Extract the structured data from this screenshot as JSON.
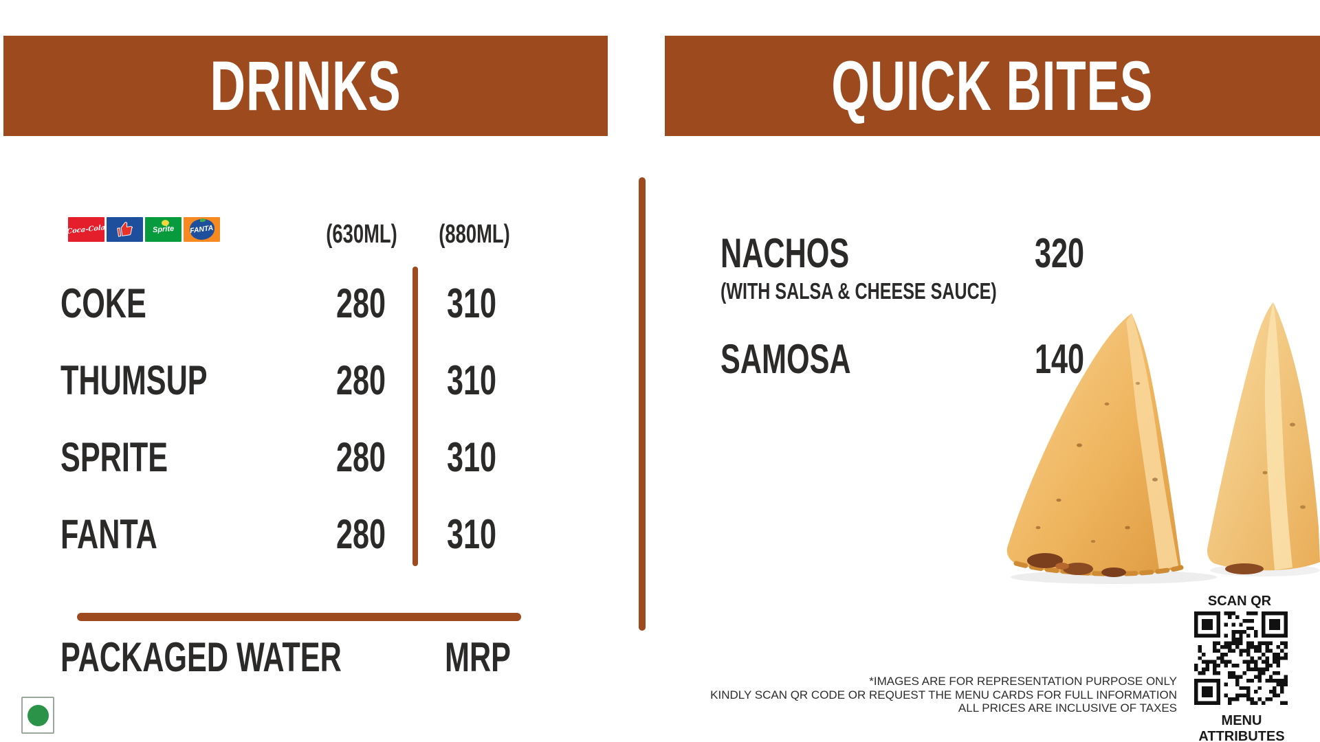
{
  "colors": {
    "brown": "#9c4a1e",
    "text": "#2b2a29",
    "veg_green": "#2b9348"
  },
  "drinks": {
    "title": "DRINKS",
    "brand_logos": [
      {
        "id": "coca-cola",
        "label": "Coca-Cola",
        "bg": "#e41e2b"
      },
      {
        "id": "thums-up",
        "label": "Thums Up",
        "bg": "#1d4f9c"
      },
      {
        "id": "sprite",
        "label": "Sprite",
        "bg": "#089b3d"
      },
      {
        "id": "fanta",
        "label": "FANTA",
        "bg": "#f6891f"
      }
    ],
    "size_headers": [
      "(630ML)",
      "(880ML)"
    ],
    "items": [
      {
        "name": "COKE",
        "price_630": "280",
        "price_880": "310"
      },
      {
        "name": "THUMSUP",
        "price_630": "280",
        "price_880": "310"
      },
      {
        "name": "SPRITE",
        "price_630": "280",
        "price_880": "310"
      },
      {
        "name": "FANTA",
        "price_630": "280",
        "price_880": "310"
      }
    ],
    "packaged_water": {
      "label": "PACKAGED WATER",
      "price": "MRP"
    }
  },
  "quick_bites": {
    "title": "QUICK BITES",
    "items": [
      {
        "name": "NACHOS",
        "note": "(WITH SALSA & CHEESE SAUCE)",
        "price": "320"
      },
      {
        "name": "SAMOSA",
        "note": "",
        "price": "140"
      }
    ]
  },
  "footer": {
    "scan_qr_label": "SCAN QR CODE",
    "menu_attributes_label": "MENU ATTRIBUTES",
    "disclaimers": [
      "*IMAGES ARE FOR REPRESENTATION PURPOSE ONLY",
      "KINDLY SCAN QR CODE OR REQUEST THE MENU CARDS FOR FULL INFORMATION",
      "ALL PRICES ARE INCLUSIVE OF TAXES"
    ]
  }
}
